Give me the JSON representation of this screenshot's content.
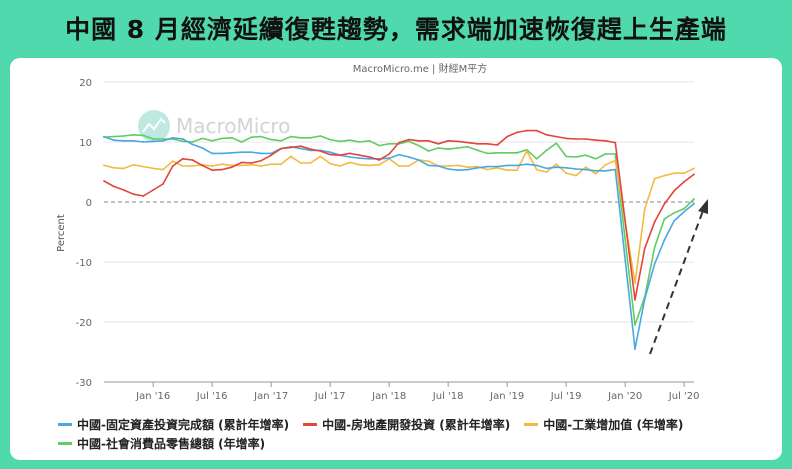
{
  "headline": "中國 8 月經濟延續復甦趨勢，需求端加速恢復趕上生產端",
  "watermark": "MacroMicro",
  "colors": {
    "background": "#4fd9ac",
    "fixed_investment": "#4aa8df",
    "real_estate": "#e0463a",
    "industrial": "#f4b942",
    "retail": "#62cb63"
  },
  "chart_data": {
    "type": "line",
    "title": "MacroMicro.me | 財經M平方",
    "xlabel": "",
    "ylabel": "Percent",
    "ylim": [
      -30,
      20
    ],
    "yticks": [
      20,
      10,
      0,
      -10,
      -20,
      -30
    ],
    "xticks": [
      "Jan '16",
      "Jul '16",
      "Jan '17",
      "Jul '17",
      "Jan '18",
      "Jul '18",
      "Jan '19",
      "Jul '19",
      "Jan '20",
      "Jul '20"
    ],
    "x_start": "2015-08",
    "x_end": "2020-08",
    "x": [
      "2015-08",
      "2015-09",
      "2015-10",
      "2015-11",
      "2015-12",
      "2016-01",
      "2016-02",
      "2016-03",
      "2016-04",
      "2016-05",
      "2016-06",
      "2016-07",
      "2016-08",
      "2016-09",
      "2016-10",
      "2016-11",
      "2016-12",
      "2017-01",
      "2017-02",
      "2017-03",
      "2017-04",
      "2017-05",
      "2017-06",
      "2017-07",
      "2017-08",
      "2017-09",
      "2017-10",
      "2017-11",
      "2017-12",
      "2018-01",
      "2018-02",
      "2018-03",
      "2018-04",
      "2018-05",
      "2018-06",
      "2018-07",
      "2018-08",
      "2018-09",
      "2018-10",
      "2018-11",
      "2018-12",
      "2019-01",
      "2019-02",
      "2019-03",
      "2019-04",
      "2019-05",
      "2019-06",
      "2019-07",
      "2019-08",
      "2019-09",
      "2019-10",
      "2019-11",
      "2019-12",
      "2020-01",
      "2020-02",
      "2020-03",
      "2020-04",
      "2020-05",
      "2020-06",
      "2020-07",
      "2020-08"
    ],
    "zero_line": true,
    "annotation": "dashed upward arrow (recovery)",
    "legend_position": "bottom",
    "series": [
      {
        "name": "中國-固定資產投資完成額 (累計年增率)",
        "color": "#4aa8df",
        "values": [
          10.9,
          10.3,
          10.2,
          10.2,
          10.0,
          10.1,
          10.2,
          10.7,
          10.5,
          9.6,
          9.0,
          8.1,
          8.1,
          8.2,
          8.3,
          8.3,
          8.1,
          8.1,
          8.9,
          9.2,
          8.9,
          8.6,
          8.6,
          8.3,
          7.8,
          7.5,
          7.3,
          7.2,
          7.2,
          7.3,
          7.9,
          7.5,
          7.0,
          6.1,
          6.0,
          5.5,
          5.3,
          5.4,
          5.7,
          5.9,
          5.9,
          6.1,
          6.1,
          6.3,
          6.1,
          5.6,
          5.8,
          5.7,
          5.5,
          5.4,
          5.2,
          5.2,
          5.4,
          null,
          -24.5,
          -16.1,
          -10.3,
          -6.3,
          -3.1,
          -1.6,
          -0.3
        ]
      },
      {
        "name": "中國-房地產開發投資 (累計年增率)",
        "color": "#e0463a",
        "values": [
          3.5,
          2.6,
          2.0,
          1.3,
          1.0,
          2.0,
          3.0,
          6.0,
          7.2,
          7.0,
          6.1,
          5.3,
          5.4,
          5.8,
          6.6,
          6.5,
          6.9,
          7.8,
          8.9,
          9.1,
          9.3,
          8.8,
          8.5,
          7.9,
          7.8,
          8.1,
          7.8,
          7.5,
          7.0,
          8.0,
          9.9,
          10.4,
          10.2,
          10.2,
          9.7,
          10.2,
          10.1,
          9.9,
          9.7,
          9.7,
          9.5,
          10.9,
          11.6,
          11.9,
          11.9,
          11.2,
          10.9,
          10.6,
          10.5,
          10.5,
          10.3,
          10.2,
          9.9,
          null,
          -16.3,
          -7.7,
          -3.3,
          -0.3,
          1.9,
          3.4,
          4.6
        ]
      },
      {
        "name": "中國-工業增加值 (年增率)",
        "color": "#f4b942",
        "values": [
          6.1,
          5.7,
          5.6,
          6.2,
          5.9,
          5.6,
          5.4,
          6.8,
          6.0,
          6.0,
          6.2,
          6.0,
          6.3,
          6.1,
          6.1,
          6.2,
          6.0,
          6.3,
          6.3,
          7.6,
          6.5,
          6.5,
          7.6,
          6.4,
          6.0,
          6.6,
          6.2,
          6.1,
          6.2,
          7.2,
          6.0,
          6.0,
          7.0,
          6.8,
          6.0,
          6.0,
          6.1,
          5.8,
          5.9,
          5.4,
          5.7,
          5.3,
          5.3,
          8.5,
          5.4,
          5.0,
          6.3,
          4.8,
          4.4,
          5.8,
          4.7,
          6.2,
          6.9,
          null,
          -13.5,
          -1.1,
          3.9,
          4.4,
          4.8,
          4.8,
          5.6
        ]
      },
      {
        "name": "中國-社會消費品零售總額 (年增率)",
        "color": "#62cb63",
        "values": [
          10.8,
          10.9,
          11.0,
          11.2,
          11.1,
          10.5,
          10.5,
          10.5,
          10.1,
          10.0,
          10.6,
          10.2,
          10.6,
          10.7,
          10.0,
          10.8,
          10.9,
          10.4,
          10.2,
          10.9,
          10.7,
          10.7,
          11.0,
          10.4,
          10.1,
          10.3,
          10.0,
          10.2,
          9.4,
          9.7,
          9.7,
          10.1,
          9.4,
          8.5,
          9.0,
          8.8,
          9.0,
          9.2,
          8.6,
          8.1,
          8.2,
          8.2,
          8.2,
          8.7,
          7.2,
          8.6,
          9.8,
          7.6,
          7.5,
          7.8,
          7.2,
          8.0,
          8.0,
          null,
          -20.5,
          -15.8,
          -7.5,
          -2.8,
          -1.8,
          -1.1,
          0.5
        ]
      }
    ]
  }
}
